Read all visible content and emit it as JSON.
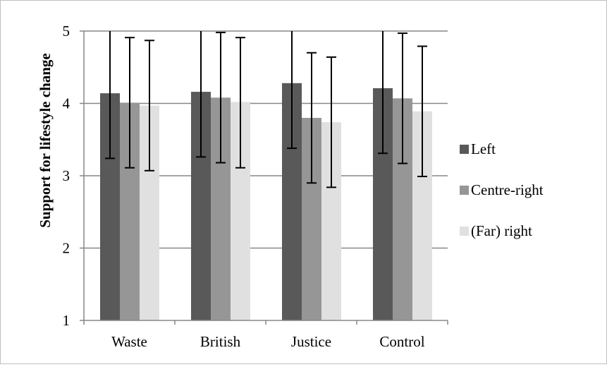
{
  "chart_data": {
    "type": "bar",
    "categories": [
      "Waste",
      "British",
      "Justice",
      "Control"
    ],
    "series": [
      {
        "name": "Left",
        "color": "#595959",
        "values": [
          4.14,
          4.16,
          4.28,
          4.21
        ],
        "error_low": [
          3.24,
          3.26,
          3.38,
          3.31
        ],
        "error_high": [
          5.04,
          5.06,
          5.18,
          5.11
        ]
      },
      {
        "name": "Centre-right",
        "color": "#969696",
        "values": [
          4.01,
          4.08,
          3.8,
          4.07
        ],
        "error_low": [
          3.11,
          3.18,
          2.9,
          3.17
        ],
        "error_high": [
          4.91,
          4.98,
          4.7,
          4.97
        ]
      },
      {
        "name": "(Far) right",
        "color": "#e0e0e0",
        "values": [
          3.97,
          4.02,
          3.74,
          3.89
        ],
        "error_low": [
          3.07,
          3.11,
          2.84,
          2.99
        ],
        "error_high": [
          4.87,
          4.91,
          4.64,
          4.79
        ]
      }
    ],
    "title": "",
    "xlabel": "",
    "ylabel": "Support for lifestyle change",
    "ylim": [
      1,
      5
    ],
    "yticks": [
      "1",
      "2",
      "3",
      "4",
      "5"
    ],
    "grid": "horizontal",
    "legend_position": "right"
  }
}
